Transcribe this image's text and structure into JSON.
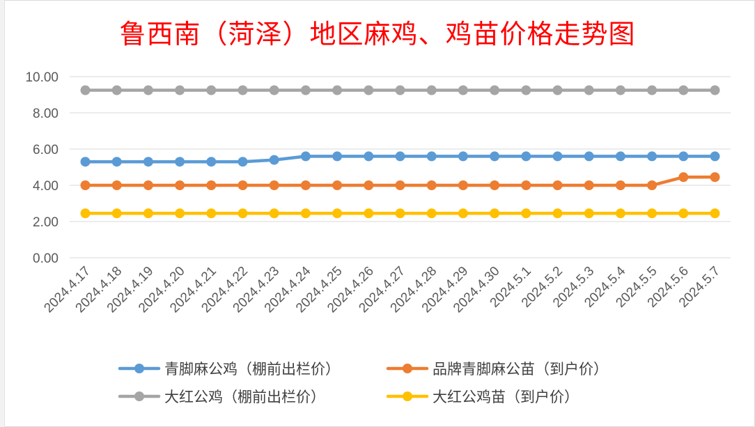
{
  "chart_data": {
    "type": "line",
    "title": "鲁西南（菏泽）地区麻鸡、鸡苗价格走势图",
    "x": [
      "2024.4.17",
      "2024.4.18",
      "2024.4.19",
      "2024.4.20",
      "2024.4.21",
      "2024.4.22",
      "2024.4.23",
      "2024.4.24",
      "2024.4.25",
      "2024.4.26",
      "2024.4.27",
      "2024.4.28",
      "2024.4.29",
      "2024.4.30",
      "2024.5.1",
      "2024.5.2",
      "2024.5.3",
      "2024.5.4",
      "2024.5.5",
      "2024.5.6",
      "2024.5.7"
    ],
    "yticks": [
      "10.00",
      "8.00",
      "6.00",
      "4.00",
      "2.00",
      "0.00"
    ],
    "ylim": [
      0,
      10
    ],
    "grid": true,
    "legend_position": "bottom",
    "series": [
      {
        "name": "青脚麻公鸡（棚前出栏价）",
        "color": "#5b9bd5",
        "values": [
          5.3,
          5.3,
          5.3,
          5.3,
          5.3,
          5.3,
          5.4,
          5.6,
          5.6,
          5.6,
          5.6,
          5.6,
          5.6,
          5.6,
          5.6,
          5.6,
          5.6,
          5.6,
          5.6,
          5.6,
          5.6
        ]
      },
      {
        "name": "品牌青脚麻公苗（到户价）",
        "color": "#ed7d31",
        "values": [
          4.0,
          4.0,
          4.0,
          4.0,
          4.0,
          4.0,
          4.0,
          4.0,
          4.0,
          4.0,
          4.0,
          4.0,
          4.0,
          4.0,
          4.0,
          4.0,
          4.0,
          4.0,
          4.0,
          4.45,
          4.45
        ]
      },
      {
        "name": "大红公鸡（棚前出栏价）",
        "color": "#a5a5a5",
        "values": [
          9.25,
          9.25,
          9.25,
          9.25,
          9.25,
          9.25,
          9.25,
          9.25,
          9.25,
          9.25,
          9.25,
          9.25,
          9.25,
          9.25,
          9.25,
          9.25,
          9.25,
          9.25,
          9.25,
          9.25,
          9.25
        ]
      },
      {
        "name": "大红公鸡苗（到户价）",
        "color": "#ffc000",
        "values": [
          2.45,
          2.45,
          2.45,
          2.45,
          2.45,
          2.45,
          2.45,
          2.45,
          2.45,
          2.45,
          2.45,
          2.45,
          2.45,
          2.45,
          2.45,
          2.45,
          2.45,
          2.45,
          2.45,
          2.45,
          2.45
        ]
      }
    ]
  }
}
